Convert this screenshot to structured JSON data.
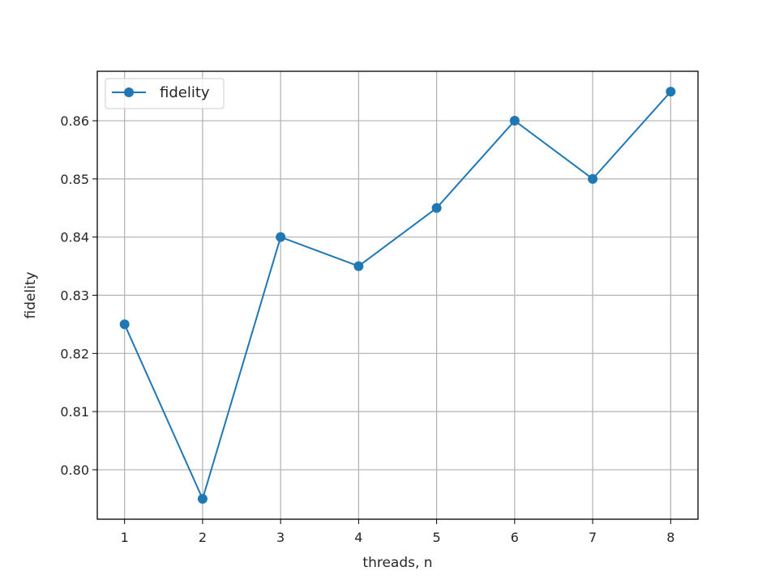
{
  "chart_data": {
    "type": "line",
    "xlabel": "threads, n",
    "ylabel": "fidelity",
    "x": [
      1,
      2,
      3,
      4,
      5,
      6,
      7,
      8
    ],
    "series": [
      {
        "name": "fidelity",
        "values": [
          0.825,
          0.795,
          0.84,
          0.835,
          0.845,
          0.86,
          0.85,
          0.865
        ],
        "color": "#1f77b4",
        "marker": "circle"
      }
    ],
    "xticks": [
      "1",
      "2",
      "3",
      "4",
      "5",
      "6",
      "7",
      "8"
    ],
    "yticks": [
      "0.80",
      "0.81",
      "0.82",
      "0.83",
      "0.84",
      "0.85",
      "0.86"
    ],
    "ytick_values": [
      0.8,
      0.81,
      0.82,
      0.83,
      0.84,
      0.85,
      0.86
    ],
    "xlim": [
      0.65,
      8.35
    ],
    "ylim": [
      0.7915,
      0.8685
    ],
    "grid": true,
    "legend_location": "upper-left"
  }
}
